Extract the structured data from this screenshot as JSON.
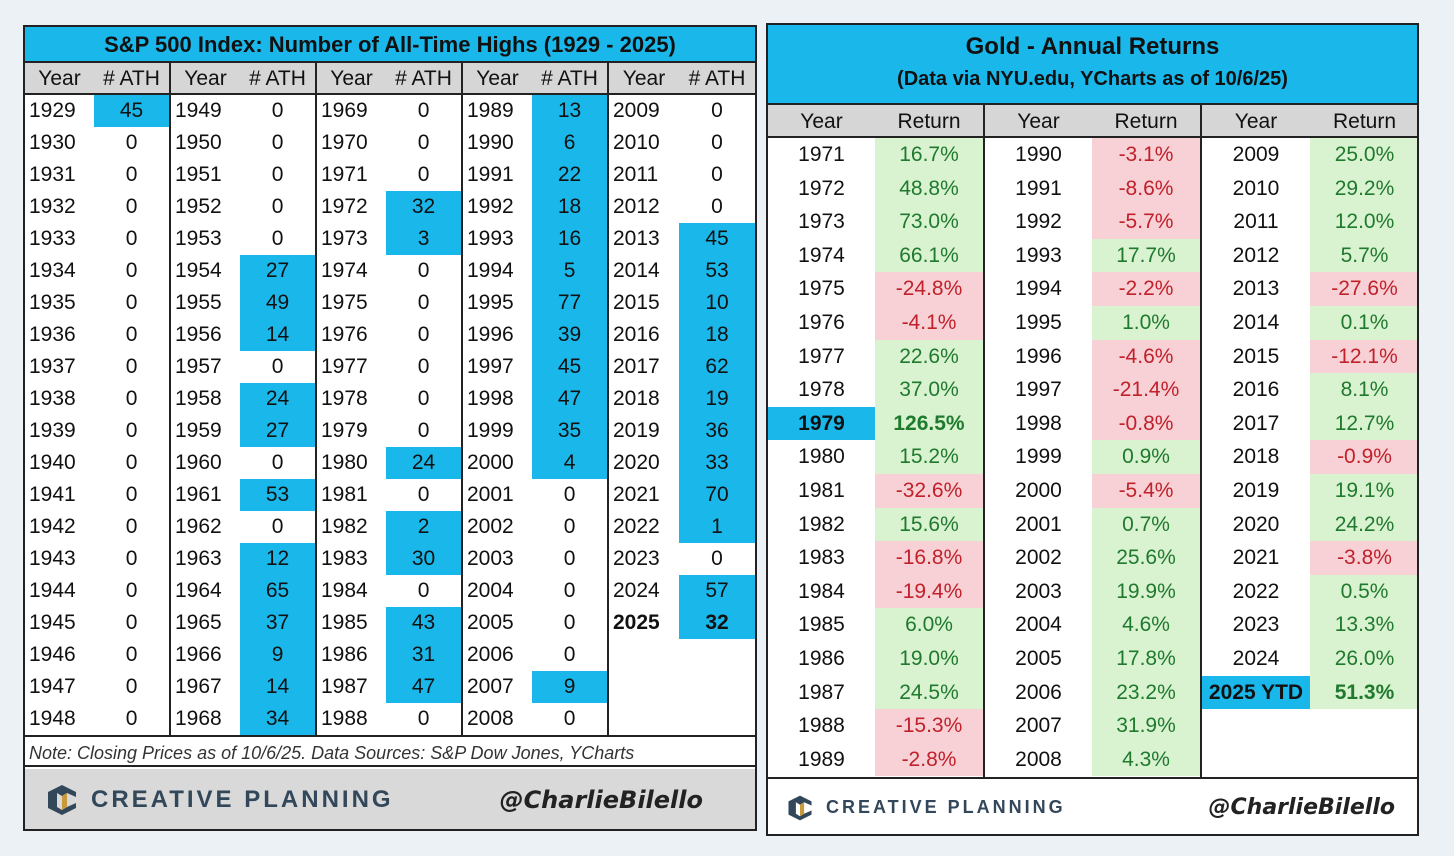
{
  "chart_data": [
    {
      "type": "table",
      "title": "S&P 500 Index: Number of All-Time Highs (1929 - 2025)",
      "columns": [
        "Year",
        "# ATH"
      ],
      "years": [
        1929,
        1930,
        1931,
        1932,
        1933,
        1934,
        1935,
        1936,
        1937,
        1938,
        1939,
        1940,
        1941,
        1942,
        1943,
        1944,
        1945,
        1946,
        1947,
        1948,
        1949,
        1950,
        1951,
        1952,
        1953,
        1954,
        1955,
        1956,
        1957,
        1958,
        1959,
        1960,
        1961,
        1962,
        1963,
        1964,
        1965,
        1966,
        1967,
        1968,
        1969,
        1970,
        1971,
        1972,
        1973,
        1974,
        1975,
        1976,
        1977,
        1978,
        1979,
        1980,
        1981,
        1982,
        1983,
        1984,
        1985,
        1986,
        1987,
        1988,
        1989,
        1990,
        1991,
        1992,
        1993,
        1994,
        1995,
        1996,
        1997,
        1998,
        1999,
        2000,
        2001,
        2002,
        2003,
        2004,
        2005,
        2006,
        2007,
        2008,
        2009,
        2010,
        2011,
        2012,
        2013,
        2014,
        2015,
        2016,
        2017,
        2018,
        2019,
        2020,
        2021,
        2022,
        2023,
        2024,
        2025
      ],
      "values": [
        45,
        0,
        0,
        0,
        0,
        0,
        0,
        0,
        0,
        0,
        0,
        0,
        0,
        0,
        0,
        0,
        0,
        0,
        0,
        0,
        0,
        0,
        0,
        0,
        0,
        27,
        49,
        14,
        0,
        24,
        27,
        0,
        53,
        0,
        12,
        65,
        37,
        9,
        14,
        34,
        0,
        0,
        0,
        32,
        3,
        0,
        0,
        0,
        0,
        0,
        0,
        24,
        0,
        2,
        30,
        0,
        43,
        31,
        47,
        0,
        13,
        6,
        22,
        18,
        16,
        5,
        77,
        39,
        45,
        47,
        35,
        4,
        0,
        0,
        0,
        0,
        0,
        0,
        9,
        0,
        0,
        0,
        0,
        0,
        45,
        53,
        10,
        18,
        62,
        19,
        36,
        33,
        70,
        1,
        0,
        57,
        32
      ],
      "note": "Note: Closing Prices as of 10/6/25. Data Sources: S&P Dow Jones, YCharts"
    },
    {
      "type": "table",
      "title": "Gold - Annual Returns",
      "subtitle": "(Data via NYU.edu, YCharts as of 10/6/25)",
      "columns": [
        "Year",
        "Return"
      ],
      "years": [
        "1971",
        "1972",
        "1973",
        "1974",
        "1975",
        "1976",
        "1977",
        "1978",
        "1979",
        "1980",
        "1981",
        "1982",
        "1983",
        "1984",
        "1985",
        "1986",
        "1987",
        "1988",
        "1989",
        "1990",
        "1991",
        "1992",
        "1993",
        "1994",
        "1995",
        "1996",
        "1997",
        "1998",
        "1999",
        "2000",
        "2001",
        "2002",
        "2003",
        "2004",
        "2005",
        "2006",
        "2007",
        "2008",
        "2009",
        "2010",
        "2011",
        "2012",
        "2013",
        "2014",
        "2015",
        "2016",
        "2017",
        "2018",
        "2019",
        "2020",
        "2021",
        "2022",
        "2023",
        "2024",
        "2025 YTD"
      ],
      "returns_pct": [
        16.7,
        48.8,
        73.0,
        66.1,
        -24.8,
        -4.1,
        22.6,
        37.0,
        126.5,
        15.2,
        -32.6,
        15.6,
        -16.8,
        -19.4,
        6.0,
        19.0,
        24.5,
        -15.3,
        -2.8,
        -3.1,
        -8.6,
        -5.7,
        17.7,
        -2.2,
        1.0,
        -4.6,
        -21.4,
        -0.8,
        0.9,
        -5.4,
        0.7,
        25.6,
        19.9,
        4.6,
        17.8,
        23.2,
        31.9,
        4.3,
        25.0,
        29.2,
        12.0,
        5.7,
        -27.6,
        0.1,
        -12.1,
        8.1,
        12.7,
        -0.9,
        19.1,
        24.2,
        -3.8,
        0.5,
        13.3,
        26.0,
        51.3
      ]
    }
  ],
  "brand": "CREATIVE PLANNING",
  "handle": "@CharlieBilello",
  "colors": {
    "highlight": "#1ab7ea",
    "positive_bg": "#d9f2d0",
    "positive_text": "#1f7a2e",
    "negative_bg": "#f7d1d5",
    "negative_text": "#c0212b"
  }
}
